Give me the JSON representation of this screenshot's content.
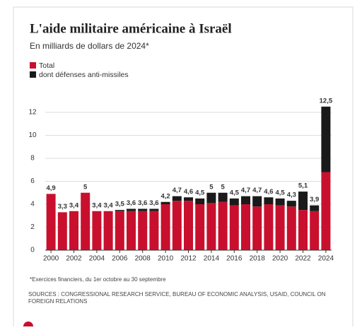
{
  "chart_data": {
    "type": "stacked-bar",
    "title": "L'aide militaire américaine à Israël",
    "subtitle": "En milliards de dollars de 2024*",
    "categories": [
      "2000",
      null,
      "2002",
      null,
      "2004",
      null,
      "2006",
      null,
      "2008",
      null,
      "2010",
      null,
      "2012",
      null,
      "2014",
      null,
      "2016",
      null,
      "2018",
      null,
      "2020",
      null,
      "2022",
      null,
      "2024"
    ],
    "series": [
      {
        "name": "Total",
        "color": "#c8102e",
        "values": [
          4.9,
          3.3,
          3.4,
          5,
          3.4,
          3.4,
          3.4,
          3.4,
          3.4,
          3.4,
          4.0,
          4.3,
          4.3,
          4.0,
          4.1,
          4.2,
          3.9,
          4.0,
          3.8,
          4.0,
          3.9,
          3.8,
          3.5,
          3.4,
          6.8
        ]
      },
      {
        "name": "dont défenses anti-missiles",
        "color": "#1a1a1a",
        "values": [
          0,
          0,
          0,
          0,
          0,
          0,
          0.1,
          0.2,
          0.2,
          0.2,
          0.2,
          0.4,
          0.3,
          0.5,
          0.9,
          0.8,
          0.6,
          0.7,
          0.9,
          0.6,
          0.6,
          0.5,
          1.6,
          0.5,
          5.7
        ]
      }
    ],
    "total": {
      "values": [
        4.9,
        3.3,
        3.4,
        5,
        3.4,
        3.4,
        3.5,
        3.6,
        3.6,
        3.6,
        4.2,
        4.7,
        4.6,
        4.5,
        5,
        5,
        4.5,
        4.7,
        4.7,
        4.6,
        4.5,
        4.3,
        5.1,
        3.9,
        12.5
      ],
      "value_labels": [
        "4,9",
        "3,3",
        "3,4",
        "5",
        "3,4",
        "3,4",
        "3,5",
        "3,6",
        "3,6",
        "3,6",
        "4,2",
        "4,7",
        "4,6",
        "4,5",
        "5",
        "5",
        "4,5",
        "4,7",
        "4,7",
        "4,6",
        "4,5",
        "4,3",
        "5,1",
        "3,9",
        "12,5"
      ]
    },
    "ylim": [
      0,
      12
    ],
    "yticks": [
      0,
      2,
      4,
      6,
      8,
      10,
      12
    ],
    "grid": true,
    "footnote": "*Exercices financiers, du 1er octobre au 30 septembre",
    "sources": "SOURCES : CONGRESSIONAL RESEARCH SERVICE, BUREAU OF ECONOMIC ANALYSIS, USAID, COUNCIL ON FOREIGN RELATIONS"
  }
}
